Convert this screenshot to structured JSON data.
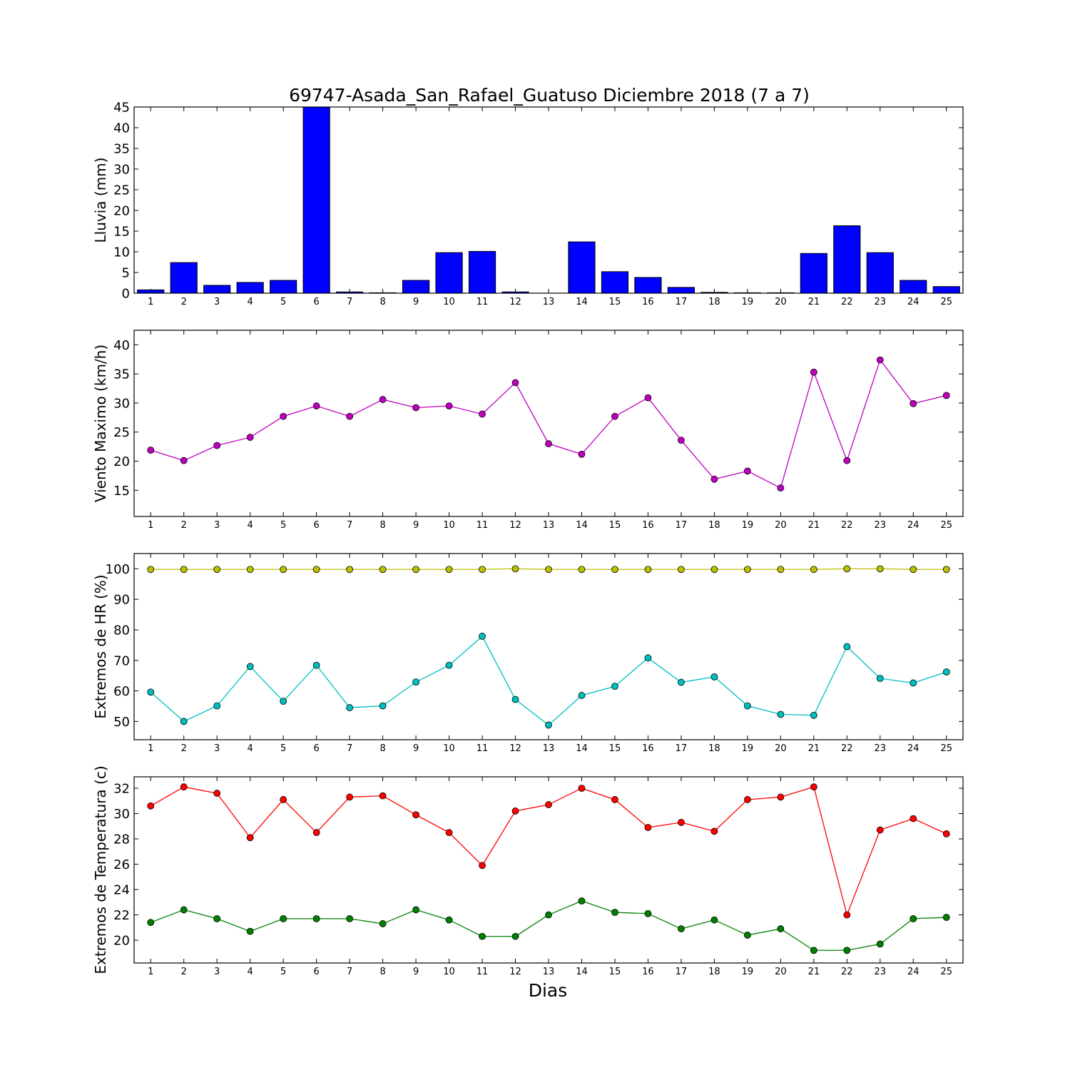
{
  "chart_data": {
    "title": "69747-Asada_San_Rafael_Guatuso Diciembre 2018  (7 a 7)",
    "xlabel": "Dias",
    "days": [
      1,
      2,
      3,
      4,
      5,
      6,
      7,
      8,
      9,
      10,
      11,
      12,
      13,
      14,
      15,
      16,
      17,
      18,
      19,
      20,
      21,
      22,
      23,
      24,
      25
    ],
    "panels": [
      {
        "type": "bar",
        "ylabel": "Lluvia (mm)",
        "ylim": [
          0,
          45
        ],
        "yticks": [
          0,
          5,
          10,
          15,
          20,
          25,
          30,
          35,
          40,
          45
        ],
        "series": [
          {
            "color": "#0000ff",
            "values": [
              0.8,
              7.4,
              1.9,
              2.6,
              3.1,
              45,
              0.3,
              0.1,
              3.1,
              9.8,
              10.1,
              0.3,
              0,
              12.4,
              5.2,
              3.8,
              1.4,
              0.2,
              0.1,
              0.1,
              9.6,
              16.3,
              9.8,
              3.1,
              1.6
            ]
          }
        ]
      },
      {
        "type": "line",
        "ylabel": "Viento Maximo (km/h)",
        "ylim": [
          10.5,
          42.5
        ],
        "yticks": [
          15,
          20,
          25,
          30,
          35,
          40
        ],
        "series": [
          {
            "color": "#bf00bf",
            "values": [
              21.9,
              20.1,
              22.7,
              24.1,
              27.7,
              29.5,
              27.7,
              30.6,
              29.2,
              29.5,
              28.1,
              33.5,
              23.0,
              21.2,
              27.7,
              30.9,
              23.6,
              16.9,
              18.3,
              15.4,
              35.3,
              20.1,
              37.4,
              29.9,
              31.3
            ]
          }
        ]
      },
      {
        "type": "line",
        "ylabel": "Extremos de HR (%)",
        "ylim": [
          44,
          105
        ],
        "yticks": [
          50,
          60,
          70,
          80,
          90,
          100
        ],
        "series": [
          {
            "color": "#bfbf00",
            "values": [
              99.8,
              99.8,
              99.8,
              99.8,
              99.8,
              99.8,
              99.8,
              99.8,
              99.8,
              99.8,
              99.8,
              100,
              99.8,
              99.8,
              99.8,
              99.8,
              99.8,
              99.8,
              99.8,
              99.8,
              99.8,
              100,
              100,
              99.8,
              99.8
            ]
          },
          {
            "color": "#00bfbf",
            "values": [
              59.6,
              50.0,
              55.1,
              68.0,
              56.6,
              68.4,
              54.5,
              55.1,
              62.9,
              68.4,
              77.9,
              57.2,
              48.8,
              58.5,
              61.5,
              70.8,
              62.8,
              64.6,
              55.1,
              52.3,
              52.0,
              74.5,
              64.1,
              62.6,
              66.2
            ]
          }
        ]
      },
      {
        "type": "line",
        "ylabel": "Extremos de Temperatura (c)",
        "ylim": [
          18.2,
          32.9
        ],
        "yticks": [
          20,
          22,
          24,
          26,
          28,
          30,
          32
        ],
        "series": [
          {
            "color": "#ff0000",
            "values": [
              30.6,
              32.1,
              31.6,
              28.1,
              31.1,
              28.5,
              31.3,
              31.4,
              29.9,
              28.5,
              25.9,
              30.2,
              30.7,
              32.0,
              31.1,
              28.9,
              29.3,
              28.6,
              31.1,
              31.3,
              32.1,
              22.0,
              28.7,
              29.6,
              28.4
            ]
          },
          {
            "color": "#008000",
            "values": [
              21.4,
              22.4,
              21.7,
              20.7,
              21.7,
              21.7,
              21.7,
              21.3,
              22.4,
              21.6,
              20.3,
              20.3,
              22.0,
              23.1,
              22.2,
              22.1,
              20.9,
              21.6,
              20.4,
              20.9,
              19.2,
              19.2,
              19.7,
              21.7,
              21.8
            ]
          }
        ]
      }
    ]
  }
}
